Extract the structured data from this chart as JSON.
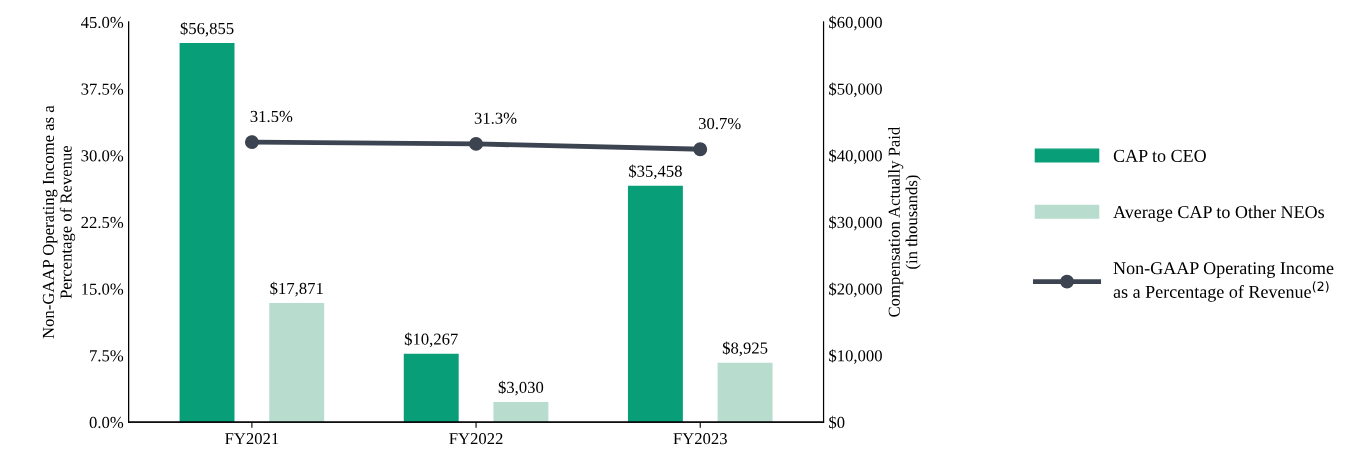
{
  "chart_data": {
    "type": "bar",
    "categories": [
      "FY2021",
      "FY2022",
      "FY2023"
    ],
    "ylabel": "Non-GAAP Operating Income as a\nPercentage of Revenue",
    "y2label": "Compensation Actually Paid\n(in thousands)",
    "ylim": [
      0,
      45
    ],
    "yticks": [
      {
        "value": 0,
        "label": "0.0%"
      },
      {
        "value": 7.5,
        "label": "7.5%"
      },
      {
        "value": 15,
        "label": "15.0%"
      },
      {
        "value": 22.5,
        "label": "22.5%"
      },
      {
        "value": 30,
        "label": "30.0%"
      },
      {
        "value": 37.5,
        "label": "37.5%"
      },
      {
        "value": 45,
        "label": "45.0%"
      }
    ],
    "y2lim": [
      0,
      60000
    ],
    "y2ticks": [
      {
        "value": 0,
        "label": "$0"
      },
      {
        "value": 10000,
        "label": "$10,000"
      },
      {
        "value": 20000,
        "label": "$20,000"
      },
      {
        "value": 30000,
        "label": "$30,000"
      },
      {
        "value": 40000,
        "label": "$40,000"
      },
      {
        "value": 50000,
        "label": "$50,000"
      },
      {
        "value": 60000,
        "label": "$60,000"
      }
    ],
    "series": [
      {
        "name": "CAP to CEO",
        "axis": "y2",
        "color": "#079e78",
        "values": [
          56855,
          10267,
          35458
        ],
        "value_labels": [
          "$56,855",
          "$10,267",
          "$35,458"
        ]
      },
      {
        "name": "Average CAP to Other NEOs",
        "axis": "y2",
        "color": "#b8dccd",
        "values": [
          17871,
          3030,
          8925
        ],
        "value_labels": [
          "$17,871",
          "$3,030",
          "$8,925"
        ]
      },
      {
        "name": "Non-GAAP Operating Income\nas a Percentage of Revenue$^{(2)}$",
        "type": "line",
        "axis": "y",
        "color": "#3d4451",
        "marker": "circle",
        "values": [
          31.5,
          31.3,
          30.7
        ],
        "value_labels": [
          "31.5%",
          "31.3%",
          "30.7%"
        ]
      }
    ],
    "grid": false,
    "legend": "right"
  }
}
